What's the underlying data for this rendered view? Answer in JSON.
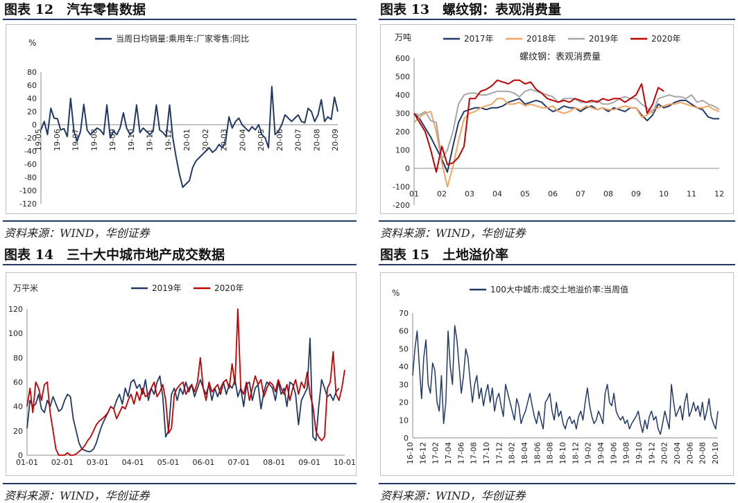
{
  "sections": [
    {
      "id": "s12",
      "title": "图表 12　汽车零售数据",
      "source": "资料来源：WIND，华创证券"
    },
    {
      "id": "s13",
      "title": "图表 13　螺纹钢：表观消费量",
      "source": "资料来源：WIND，华创证券"
    },
    {
      "id": "s14",
      "title": "图表 14　三十大中城市地产成交数据",
      "source": "资料来源：WIND，华创证券"
    },
    {
      "id": "s15",
      "title": "图表 15　土地溢价率",
      "source": "资料来源：WIND，华创证券"
    }
  ],
  "colors": {
    "navy": "#1f3864",
    "orange": "#f4a460",
    "gray": "#a6a6a6",
    "red": "#c00000",
    "rule": "#1f3864"
  },
  "chart_data": [
    {
      "id": "c12",
      "type": "line",
      "ylabel": "%",
      "ylim": [
        -120,
        80
      ],
      "yticks": [
        -120,
        -100,
        -80,
        -60,
        -40,
        -20,
        0,
        20,
        40,
        60,
        80
      ],
      "xticks": [
        "19-05",
        "19-06",
        "19-07",
        "19-08",
        "19-09",
        "19-10",
        "19-11",
        "19-12",
        "20-01",
        "20-02",
        "20-03",
        "20-04",
        "20-05",
        "20-06",
        "20-07",
        "20-08",
        "20-09"
      ],
      "series": [
        {
          "name": "当周日均销量:乘用车:厂家零售:同比",
          "color": "#1f3864",
          "values": [
            -8,
            5,
            -15,
            25,
            10,
            9,
            -8,
            -6,
            -18,
            40,
            -10,
            -25,
            -10,
            31,
            -8,
            -15,
            -10,
            -5,
            -8,
            -15,
            30,
            -20,
            -10,
            -15,
            -5,
            18,
            -5,
            -15,
            -10,
            30,
            -12,
            -5,
            -10,
            -15,
            -10,
            30,
            -8,
            -12,
            -18,
            30,
            -20,
            -50,
            -75,
            -95,
            -90,
            -85,
            -65,
            -55,
            -50,
            -45,
            -40,
            -35,
            -42,
            -38,
            -30,
            -35,
            -25,
            12,
            -5,
            5,
            10,
            0,
            -5,
            -10,
            -3,
            -8,
            0,
            -15,
            -20,
            -35,
            58,
            -15,
            -10,
            0,
            15,
            10,
            5,
            10,
            15,
            5,
            3,
            25,
            20,
            5,
            15,
            38,
            5,
            12,
            8,
            42,
            20
          ]
        }
      ]
    },
    {
      "id": "c13",
      "type": "line",
      "ylabel": "万吨",
      "overlay_title": "螺纹钢：表观消费量",
      "ylim": [
        -200,
        600
      ],
      "yticks": [
        -200,
        -100,
        0,
        100,
        200,
        300,
        400,
        500,
        600
      ],
      "xticks": [
        "01",
        "02",
        "03",
        "04",
        "05",
        "06",
        "07",
        "08",
        "09",
        "10",
        "11",
        "12"
      ],
      "series": [
        {
          "name": "2017年",
          "color": "#1f3864",
          "values": [
            300,
            270,
            220,
            170,
            110,
            50,
            -20,
            120,
            250,
            310,
            320,
            330,
            330,
            320,
            330,
            330,
            340,
            360,
            370,
            380,
            350,
            360,
            370,
            360,
            330,
            310,
            320,
            340,
            330,
            330,
            310,
            330,
            340,
            320,
            330,
            310,
            330,
            320,
            310,
            330,
            330,
            290,
            260,
            290,
            350,
            330,
            340,
            360,
            370,
            370,
            350,
            330,
            320,
            280,
            270,
            270
          ]
        },
        {
          "name": "2018年",
          "color": "#f4a460",
          "values": [
            250,
            280,
            300,
            310,
            200,
            30,
            -100,
            10,
            150,
            270,
            300,
            310,
            330,
            340,
            350,
            380,
            380,
            350,
            350,
            360,
            340,
            350,
            340,
            330,
            330,
            340,
            310,
            300,
            310,
            330,
            320,
            340,
            330,
            320,
            330,
            320,
            320,
            330,
            340,
            330,
            330,
            280,
            290,
            320,
            330,
            340,
            350,
            350,
            360,
            350,
            340,
            330,
            330,
            340,
            320,
            310
          ]
        },
        {
          "name": "2019年",
          "color": "#a6a6a6",
          "values": [
            300,
            290,
            310,
            260,
            250,
            50,
            100,
            200,
            350,
            400,
            410,
            410,
            400,
            400,
            410,
            420,
            420,
            420,
            410,
            390,
            420,
            430,
            420,
            410,
            400,
            390,
            360,
            380,
            380,
            380,
            360,
            360,
            360,
            370,
            350,
            350,
            360,
            380,
            390,
            380,
            380,
            350,
            330,
            300,
            380,
            390,
            400,
            390,
            390,
            380,
            400,
            360,
            370,
            350,
            340,
            320
          ]
        },
        {
          "name": "2020年",
          "color": "#c00000",
          "values": [
            300,
            250,
            200,
            100,
            -20,
            120,
            20,
            30,
            60,
            120,
            380,
            380,
            420,
            430,
            450,
            480,
            470,
            460,
            480,
            480,
            460,
            470,
            430,
            410,
            380,
            370,
            360,
            370,
            360,
            380,
            370,
            360,
            370,
            360,
            380,
            370,
            380,
            380,
            360,
            380,
            400,
            460,
            300,
            350,
            440,
            420
          ]
        }
      ]
    },
    {
      "id": "c14",
      "type": "line",
      "ylabel": "万平米",
      "ylim": [
        0,
        120
      ],
      "yticks": [
        0,
        20,
        40,
        60,
        80,
        100,
        120
      ],
      "xticks": [
        "01-01",
        "02-01",
        "03-01",
        "04-01",
        "05-01",
        "06-01",
        "07-01",
        "08-01",
        "09-01",
        "10-01"
      ],
      "series": [
        {
          "name": "2019年",
          "color": "#1f3864",
          "values": [
            22,
            45,
            40,
            42,
            50,
            38,
            35,
            45,
            40,
            48,
            42,
            36,
            38,
            45,
            50,
            48,
            30,
            20,
            10,
            5,
            4,
            3,
            3,
            5,
            10,
            18,
            25,
            30,
            35,
            40,
            38,
            45,
            50,
            42,
            55,
            48,
            60,
            62,
            55,
            58,
            50,
            62,
            45,
            55,
            50,
            60,
            65,
            48,
            15,
            20,
            50,
            55,
            45,
            55,
            50,
            60,
            52,
            58,
            48,
            55,
            62,
            55,
            50,
            58,
            45,
            55,
            48,
            55,
            60,
            50,
            58,
            55,
            62,
            48,
            55,
            40,
            58,
            60,
            45,
            55,
            58,
            38,
            52,
            60,
            58,
            55,
            45,
            60,
            50,
            55,
            40,
            60,
            58,
            50,
            25,
            45,
            50,
            55,
            96,
            15,
            12,
            40,
            62,
            55,
            48,
            50,
            45,
            52,
            55
          ]
        },
        {
          "name": "2020年",
          "color": "#c00000",
          "values": [
            40,
            55,
            35,
            60,
            55,
            45,
            58,
            60,
            35,
            20,
            5,
            0,
            0,
            0,
            2,
            0,
            0,
            1,
            3,
            5,
            8,
            12,
            15,
            20,
            25,
            28,
            30,
            32,
            35,
            40,
            38,
            30,
            35,
            40,
            38,
            45,
            50,
            42,
            52,
            45,
            55,
            48,
            50,
            55,
            60,
            48,
            52,
            58,
            45,
            18,
            22,
            50,
            55,
            58,
            60,
            50,
            55,
            58,
            52,
            60,
            80,
            55,
            45,
            60,
            52,
            55,
            58,
            50,
            60,
            62,
            55,
            75,
            58,
            120,
            55,
            50,
            60,
            45,
            55,
            65,
            58,
            62,
            48,
            55,
            60,
            58,
            52,
            62,
            55,
            50,
            58,
            45,
            55,
            62,
            50,
            60,
            55,
            68,
            50,
            40,
            20,
            15,
            12,
            15,
            55,
            60,
            85,
            50,
            45,
            55,
            70
          ]
        }
      ]
    },
    {
      "id": "c15",
      "type": "line",
      "ylabel": "%",
      "ylim": [
        0,
        70
      ],
      "yticks": [
        0,
        10,
        20,
        30,
        40,
        50,
        60,
        70
      ],
      "xticks": [
        "16-10",
        "16-12",
        "17-02",
        "17-04",
        "17-06",
        "17-08",
        "17-10",
        "17-12",
        "18-02",
        "18-04",
        "18-06",
        "18-08",
        "18-10",
        "18-12",
        "19-02",
        "19-04",
        "19-06",
        "19-08",
        "19-10",
        "19-12",
        "20-02",
        "20-04",
        "20-06",
        "20-08",
        "20-10"
      ],
      "series": [
        {
          "name": "100大中城市:成交土地溢价率:当周值",
          "color": "#1f3864",
          "values": [
            35,
            50,
            60,
            40,
            22,
            45,
            55,
            30,
            25,
            42,
            38,
            20,
            15,
            35,
            8,
            20,
            60,
            40,
            30,
            63,
            55,
            40,
            25,
            35,
            50,
            45,
            32,
            20,
            30,
            35,
            22,
            28,
            18,
            25,
            30,
            20,
            28,
            15,
            22,
            25,
            18,
            12,
            30,
            25,
            20,
            15,
            10,
            22,
            18,
            8,
            12,
            15,
            20,
            25,
            18,
            12,
            8,
            15,
            10,
            5,
            20,
            22,
            25,
            15,
            10,
            20,
            12,
            15,
            8,
            5,
            10,
            12,
            8,
            10,
            5,
            12,
            15,
            10,
            20,
            28,
            18,
            12,
            8,
            10,
            15,
            12,
            8,
            25,
            30,
            20,
            18,
            25,
            15,
            12,
            10,
            12,
            8,
            10,
            5,
            8,
            10,
            12,
            15,
            8,
            3,
            10,
            5,
            12,
            15,
            10,
            12,
            5,
            2,
            8,
            15,
            10,
            5,
            30,
            20,
            12,
            15,
            18,
            10,
            20,
            25,
            12,
            15,
            20,
            15,
            18,
            12,
            20,
            10,
            15,
            22,
            12,
            8,
            5,
            15
          ]
        }
      ]
    }
  ]
}
